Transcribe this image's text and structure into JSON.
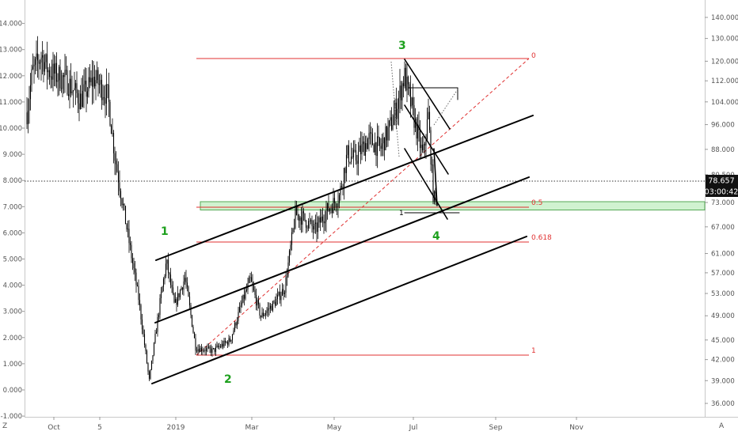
{
  "chart_data": {
    "type": "line",
    "left_axis": {
      "ticks": [
        "14.000",
        "13.000",
        "12.000",
        "11.000",
        "10.000",
        "9.000",
        "8.000",
        "7.000",
        "6.000",
        "5.000",
        "4.000",
        "3.000",
        "2.000",
        "1.000",
        "0.000",
        "-1.000"
      ],
      "range": [
        -1,
        14.4
      ]
    },
    "right_axis": {
      "scale": "log",
      "ticks": [
        "140.000",
        "130.000",
        "120.000",
        "112.000",
        "104.000",
        "96.000",
        "88.000",
        "80.500",
        "73.000",
        "67.000",
        "61.000",
        "57.000",
        "53.000",
        "49.000",
        "45.000",
        "42.000",
        "39.000",
        "36.000"
      ]
    },
    "x_axis": {
      "ticks": [
        "Oct",
        "5",
        "2019",
        "Mar",
        "May",
        "Jul",
        "Sep",
        "Nov"
      ]
    },
    "price": {
      "last": 78.657,
      "last_label": "78.657",
      "countdown_label": "03:00:42",
      "reference_line_left_value": 8.0
    },
    "series_approx": [
      {
        "x": "2018-09-15",
        "y": 10.6
      },
      {
        "x": "2018-09-19",
        "y": 12.1
      },
      {
        "x": "2018-09-26",
        "y": 12.8
      },
      {
        "x": "2018-10-01",
        "y": 12.2
      },
      {
        "x": "2018-10-15",
        "y": 11.8
      },
      {
        "x": "2018-10-25",
        "y": 11.1
      },
      {
        "x": "2018-11-05",
        "y": 11.9
      },
      {
        "x": "2018-11-15",
        "y": 11.2
      },
      {
        "x": "2018-11-20",
        "y": 9.0
      },
      {
        "x": "2018-11-28",
        "y": 6.5
      },
      {
        "x": "2018-12-08",
        "y": 3.5
      },
      {
        "x": "2018-12-16",
        "y": 0.35
      },
      {
        "x": "2018-12-24",
        "y": 3.3
      },
      {
        "x": "2018-12-29",
        "y": 4.9
      },
      {
        "x": "2019-01-04",
        "y": 3.2
      },
      {
        "x": "2019-01-12",
        "y": 4.3
      },
      {
        "x": "2019-01-20",
        "y": 1.6
      },
      {
        "x": "2019-02-02",
        "y": 1.5
      },
      {
        "x": "2019-02-15",
        "y": 1.9
      },
      {
        "x": "2019-02-23",
        "y": 3.2
      },
      {
        "x": "2019-03-02",
        "y": 4.2
      },
      {
        "x": "2019-03-10",
        "y": 2.8
      },
      {
        "x": "2019-03-20",
        "y": 3.3
      },
      {
        "x": "2019-03-28",
        "y": 3.9
      },
      {
        "x": "2019-04-05",
        "y": 6.7
      },
      {
        "x": "2019-04-10",
        "y": 6.6
      },
      {
        "x": "2019-04-20",
        "y": 6.1
      },
      {
        "x": "2019-04-28",
        "y": 6.8
      },
      {
        "x": "2019-05-08",
        "y": 7.4
      },
      {
        "x": "2019-05-14",
        "y": 9.0
      },
      {
        "x": "2019-05-20",
        "y": 8.8
      },
      {
        "x": "2019-05-30",
        "y": 9.6
      },
      {
        "x": "2019-06-08",
        "y": 9.2
      },
      {
        "x": "2019-06-18",
        "y": 10.4
      },
      {
        "x": "2019-06-26",
        "y": 12.0
      },
      {
        "x": "2019-07-04",
        "y": 10.2
      },
      {
        "x": "2019-07-10",
        "y": 8.9
      },
      {
        "x": "2019-07-14",
        "y": 10.5
      },
      {
        "x": "2019-07-18",
        "y": 7.2
      },
      {
        "x": "2019-07-20",
        "y": 7.5
      }
    ],
    "annotations": {
      "wave_labels": [
        {
          "label": "1",
          "x": "2018-12-20",
          "y": 6.1
        },
        {
          "label": "2",
          "x": "2019-02-14",
          "y": 0.4
        },
        {
          "label": "3",
          "x": "2019-06-24",
          "y": 13.2
        },
        {
          "label": "4",
          "x": "2019-07-25",
          "y": 5.9
        }
      ],
      "fib_levels": [
        {
          "label": "0",
          "y": 12.6
        },
        {
          "label": "0.5",
          "y": 7.0
        },
        {
          "label": "0.618",
          "y": 5.65
        },
        {
          "label": "1",
          "y": 1.35
        }
      ],
      "target_marker_label": "1",
      "corner_marks": {
        "bottom_left": "Z",
        "bottom_right": "A"
      },
      "support_zone": {
        "y_from": 6.95,
        "y_to": 7.25
      }
    },
    "grid": false,
    "colors": {
      "candles": "#000000",
      "channel": "#000000",
      "fib": "#e03030",
      "wave_labels": "#1ea01e",
      "zone_fill": "#c8f0c8",
      "zone_border": "#56a856",
      "axis_text": "#555555"
    }
  }
}
